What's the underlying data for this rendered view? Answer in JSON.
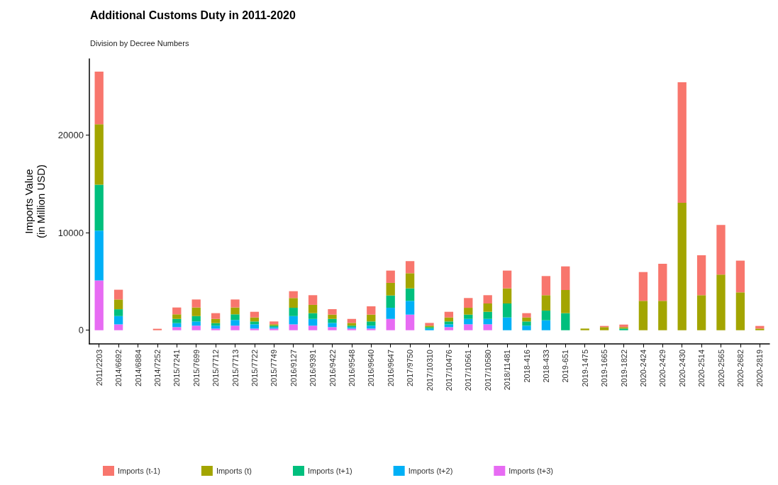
{
  "chart_data": {
    "type": "bar",
    "stacked": true,
    "title": "Additional Customs Duty in 2011-2020",
    "subtitle": "Division by Decree Numbers",
    "ylabel": "Imports Value\n(in Million USD)",
    "categories": [
      "2011/2203",
      "2014/6692",
      "2014/6884",
      "2014/7252",
      "2015/7241",
      "2015/7699",
      "2015/7712",
      "2015/7713",
      "2015/7722",
      "2015/7749",
      "2016/9127",
      "2016/9391",
      "2016/9422",
      "2016/9548",
      "2016/9640",
      "2016/9647",
      "2017/9750",
      "2017/10310",
      "2017/10476",
      "2017/10561",
      "2017/10580",
      "2018/11481",
      "2018-416",
      "2018-433",
      "2019-651",
      "2019-1475",
      "2019-1665",
      "2019-1822",
      "2020-2424",
      "2020-2429",
      "2020-2430",
      "2020-2514",
      "2020-2565",
      "2020-2682",
      "2020-2819"
    ],
    "series": [
      {
        "name": "Imports (t+3)",
        "color": "#e76bf3",
        "values": [
          5100,
          600,
          0,
          0,
          320,
          470,
          170,
          470,
          170,
          170,
          600,
          470,
          320,
          170,
          170,
          1160,
          1600,
          0,
          320,
          610,
          610,
          0,
          0,
          0,
          0,
          0,
          0,
          0,
          0,
          0,
          0,
          0,
          0,
          0,
          0
        ]
      },
      {
        "name": "Imports (t+2)",
        "color": "#00b0f6",
        "values": [
          5100,
          850,
          0,
          0,
          410,
          430,
          300,
          580,
          440,
          150,
          850,
          690,
          430,
          150,
          300,
          1140,
          1410,
          170,
          290,
          550,
          550,
          1310,
          470,
          1020,
          0,
          0,
          0,
          0,
          0,
          0,
          0,
          0,
          0,
          0,
          0
        ]
      },
      {
        "name": "Imports (t+1)",
        "color": "#00bf7d",
        "values": [
          4700,
          700,
          0,
          0,
          430,
          550,
          260,
          580,
          290,
          150,
          850,
          590,
          410,
          150,
          430,
          1260,
          1280,
          150,
          290,
          440,
          730,
          1430,
          430,
          990,
          1750,
          0,
          0,
          170,
          0,
          0,
          0,
          0,
          0,
          0,
          0
        ]
      },
      {
        "name": "Imports (t)",
        "color": "#a3a500",
        "values": [
          6200,
          1000,
          0,
          0,
          470,
          880,
          430,
          700,
          410,
          140,
          1000,
          850,
          440,
          280,
          700,
          1290,
          1550,
          150,
          410,
          700,
          850,
          1550,
          410,
          1580,
          2370,
          170,
          320,
          150,
          3010,
          3010,
          13060,
          3590,
          5700,
          3880,
          170
        ]
      },
      {
        "name": "Imports (t-1)",
        "color": "#f8766d",
        "values": [
          5400,
          1000,
          0,
          150,
          700,
          820,
          590,
          820,
          580,
          290,
          700,
          990,
          560,
          410,
          850,
          1260,
          1240,
          280,
          580,
          1000,
          850,
          1820,
          440,
          1960,
          2420,
          0,
          120,
          260,
          2950,
          3800,
          12340,
          4090,
          5090,
          3250,
          270
        ]
      }
    ],
    "ylim": [
      -1400,
      27800
    ],
    "yticks": [
      0,
      10000,
      20000
    ],
    "grid": false,
    "legend": "bottom"
  }
}
